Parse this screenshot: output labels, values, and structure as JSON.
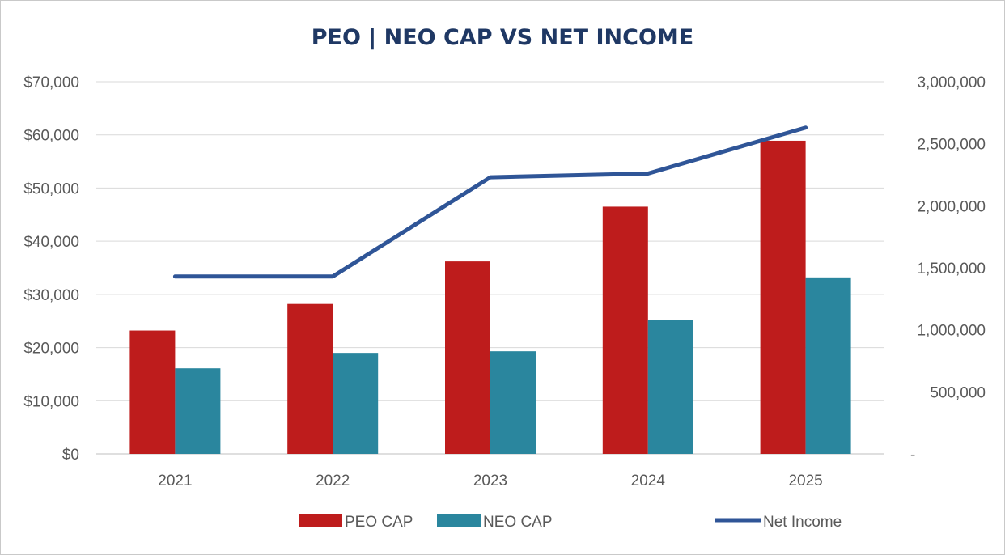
{
  "chart_data": {
    "type": "bar",
    "title": "PEO | NEO CAP VS NET INCOME",
    "categories": [
      "2021",
      "2022",
      "2023",
      "2024",
      "2025"
    ],
    "series": [
      {
        "name": "PEO CAP",
        "type": "bar",
        "axis": "left",
        "color": "#be1c1c",
        "values": [
          23200,
          28200,
          36200,
          46500,
          58900
        ]
      },
      {
        "name": "NEO CAP",
        "type": "bar",
        "axis": "left",
        "color": "#2a869e",
        "values": [
          16100,
          19000,
          19300,
          25200,
          33200
        ]
      },
      {
        "name": "Net Income",
        "type": "line",
        "axis": "right",
        "color": "#2f5597",
        "values": [
          1430000,
          1430000,
          2230000,
          2260000,
          2630000
        ]
      }
    ],
    "ylim": [
      0,
      70000
    ],
    "y2lim": [
      0,
      3000000
    ],
    "y_ticks": [
      "$0",
      "$10,000",
      "$20,000",
      "$30,000",
      "$40,000",
      "$50,000",
      "$60,000",
      "$70,000"
    ],
    "y2_ticks": [
      "-",
      "500,000",
      "1,000,000",
      "1,500,000",
      "2,000,000",
      "2,500,000",
      "3,000,000"
    ],
    "grid": true,
    "legend": "bottom"
  }
}
